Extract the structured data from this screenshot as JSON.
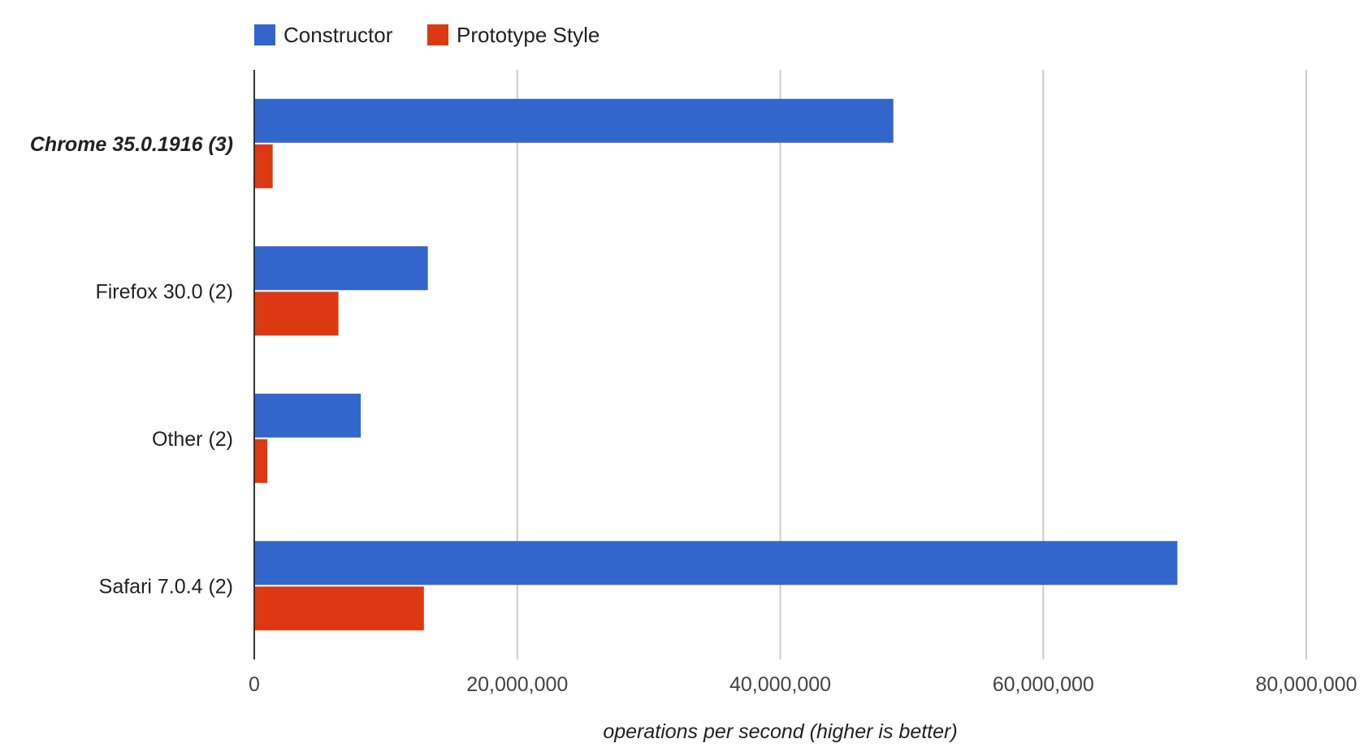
{
  "chart_data": {
    "type": "bar",
    "orientation": "horizontal",
    "categories": [
      "Chrome 35.0.1916 (3)",
      "Firefox 30.0 (2)",
      "Other (2)",
      "Safari 7.0.4 (2)"
    ],
    "highlighted_category": "Chrome 35.0.1916 (3)",
    "series": [
      {
        "name": "Constructor",
        "color": "#3366cc",
        "values": [
          48600000,
          13200000,
          8100000,
          70200000
        ]
      },
      {
        "name": "Prototype Style",
        "color": "#dc3912",
        "values": [
          1400000,
          6400000,
          1000000,
          12900000
        ]
      }
    ],
    "xlabel": "operations per second (higher is better)",
    "ylabel": "",
    "xlim": [
      0,
      80000000
    ],
    "x_ticks": [
      0,
      20000000,
      40000000,
      60000000,
      80000000
    ],
    "x_tick_labels": [
      "0",
      "20,000,000",
      "40,000,000",
      "60,000,000",
      "80,000,000"
    ],
    "grid": true,
    "legend_position": "top"
  }
}
